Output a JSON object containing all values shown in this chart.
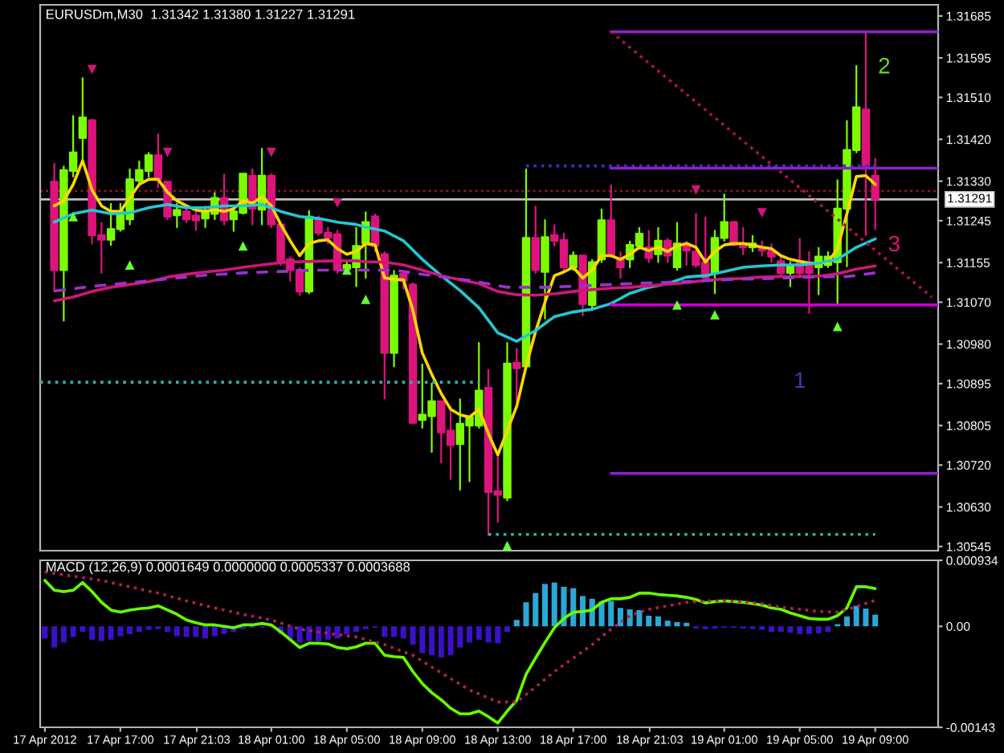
{
  "chart_data": [
    {
      "type": "candlestick",
      "title": "EURUSDm,M30  1.31342 1.31380 1.31227 1.31291",
      "x": [
        "2012-04-17T13:30",
        "2012-04-17T14:00",
        "2012-04-17T14:30",
        "2012-04-17T15:00",
        "2012-04-17T15:30",
        "2012-04-17T16:00",
        "2012-04-17T16:30",
        "2012-04-17T17:00",
        "2012-04-17T17:30",
        "2012-04-17T18:00",
        "2012-04-17T18:30",
        "2012-04-17T19:00",
        "2012-04-17T19:30",
        "2012-04-17T20:00",
        "2012-04-17T20:30",
        "2012-04-17T21:00",
        "2012-04-17T21:30",
        "2012-04-17T22:00",
        "2012-04-17T22:30",
        "2012-04-17T23:00",
        "2012-04-17T23:30",
        "2012-04-18T00:00",
        "2012-04-18T00:30",
        "2012-04-18T01:00",
        "2012-04-18T01:30",
        "2012-04-18T02:00",
        "2012-04-18T02:30",
        "2012-04-18T03:00",
        "2012-04-18T03:30",
        "2012-04-18T04:00",
        "2012-04-18T04:30",
        "2012-04-18T05:00",
        "2012-04-18T05:30",
        "2012-04-18T06:00",
        "2012-04-18T06:30",
        "2012-04-18T07:00",
        "2012-04-18T07:30",
        "2012-04-18T08:00",
        "2012-04-18T08:30",
        "2012-04-18T09:00",
        "2012-04-18T09:30",
        "2012-04-18T10:00",
        "2012-04-18T10:30",
        "2012-04-18T11:00",
        "2012-04-18T11:30",
        "2012-04-18T12:00",
        "2012-04-18T12:30",
        "2012-04-18T13:00",
        "2012-04-18T13:30",
        "2012-04-18T14:00",
        "2012-04-18T14:30",
        "2012-04-18T15:00",
        "2012-04-18T15:30",
        "2012-04-18T16:00",
        "2012-04-18T16:30",
        "2012-04-18T17:00",
        "2012-04-18T17:30",
        "2012-04-18T18:00",
        "2012-04-18T18:30",
        "2012-04-18T19:00",
        "2012-04-18T19:30",
        "2012-04-18T20:00",
        "2012-04-18T20:30",
        "2012-04-18T21:00",
        "2012-04-18T21:30",
        "2012-04-18T22:00",
        "2012-04-18T22:30",
        "2012-04-18T23:00",
        "2012-04-18T23:30",
        "2012-04-19T00:00",
        "2012-04-19T00:30",
        "2012-04-19T01:00",
        "2012-04-19T01:30",
        "2012-04-19T02:00",
        "2012-04-19T02:30",
        "2012-04-19T03:00",
        "2012-04-19T03:30",
        "2012-04-19T04:00",
        "2012-04-19T04:30",
        "2012-04-19T05:00",
        "2012-04-19T05:30",
        "2012-04-19T06:00",
        "2012-04-19T06:30",
        "2012-04-19T07:00",
        "2012-04-19T07:30",
        "2012-04-19T08:00",
        "2012-04-19T08:30",
        "2012-04-19T09:00"
      ],
      "series": [
        {
          "ohlc": [
            [
              1.31329,
              1.31369,
              1.31093,
              1.31139
            ],
            [
              1.31139,
              1.31363,
              1.3103,
              1.31354
            ],
            [
              1.31352,
              1.31472,
              1.3134,
              1.31392
            ],
            [
              1.31423,
              1.31553,
              1.31374,
              1.31467
            ],
            [
              1.31461,
              1.31464,
              1.31196,
              1.31214
            ],
            [
              1.31214,
              1.31242,
              1.31133,
              1.31204
            ],
            [
              1.31204,
              1.31283,
              1.31193,
              1.31227
            ],
            [
              1.31227,
              1.31283,
              1.31223,
              1.31265
            ],
            [
              1.31248,
              1.31357,
              1.31237,
              1.31334
            ],
            [
              1.31331,
              1.31374,
              1.31323,
              1.31354
            ],
            [
              1.31352,
              1.31392,
              1.3134,
              1.31386
            ],
            [
              1.31386,
              1.31432,
              1.31317,
              1.31334
            ],
            [
              1.31329,
              1.31331,
              1.31248,
              1.31254
            ],
            [
              1.31257,
              1.31283,
              1.31231,
              1.31268
            ],
            [
              1.31265,
              1.31277,
              1.31242,
              1.31248
            ],
            [
              1.31256,
              1.31265,
              1.31225,
              1.31246
            ],
            [
              1.3125,
              1.31277,
              1.31231,
              1.31263
            ],
            [
              1.3126,
              1.31306,
              1.31248,
              1.31294
            ],
            [
              1.31294,
              1.31346,
              1.31237,
              1.31246
            ],
            [
              1.31248,
              1.31277,
              1.31223,
              1.31265
            ],
            [
              1.31262,
              1.31348,
              1.3126,
              1.31346
            ],
            [
              1.31342,
              1.31357,
              1.31237,
              1.31271
            ],
            [
              1.31269,
              1.31401,
              1.31237,
              1.31342
            ],
            [
              1.31342,
              1.31346,
              1.31231,
              1.31237
            ],
            [
              1.31237,
              1.31239,
              1.3115,
              1.31156
            ],
            [
              1.31162,
              1.31168,
              1.31116,
              1.31139
            ],
            [
              1.31139,
              1.31145,
              1.31085,
              1.31093
            ],
            [
              1.31093,
              1.31268,
              1.31089,
              1.31254
            ],
            [
              1.31248,
              1.31256,
              1.31214,
              1.31219
            ],
            [
              1.31219,
              1.31231,
              1.31196,
              1.31208
            ],
            [
              1.31216,
              1.31225,
              1.31133,
              1.31139
            ],
            [
              1.31141,
              1.31162,
              1.31133,
              1.3115
            ],
            [
              1.31145,
              1.31231,
              1.31104,
              1.31191
            ],
            [
              1.31196,
              1.31265,
              1.31122,
              1.31242
            ],
            [
              1.31248,
              1.3126,
              1.31179,
              1.31191
            ],
            [
              1.31173,
              1.31179,
              1.30863,
              1.30961
            ],
            [
              1.30961,
              1.31139,
              1.30932,
              1.31127
            ],
            [
              1.31131,
              1.31139,
              1.31099,
              1.31116
            ],
            [
              1.31108,
              1.31112,
              1.30809,
              1.30811
            ],
            [
              1.30817,
              1.30938,
              1.308,
              1.30828
            ],
            [
              1.30825,
              1.30897,
              1.30748,
              1.30857
            ],
            [
              1.30857,
              1.30859,
              1.30725,
              1.3079
            ],
            [
              1.30794,
              1.30846,
              1.3069,
              1.30763
            ],
            [
              1.30765,
              1.30863,
              1.30667,
              1.30809
            ],
            [
              1.30805,
              1.30825,
              1.30685,
              1.30823
            ],
            [
              1.30805,
              1.30984,
              1.308,
              1.3088
            ],
            [
              1.30886,
              1.30926,
              1.3057,
              1.30662
            ],
            [
              1.30664,
              1.30742,
              1.30598,
              1.30656
            ],
            [
              1.3065,
              1.30984,
              1.30644,
              1.30938
            ],
            [
              1.3094,
              1.30972,
              1.30857,
              1.30928
            ],
            [
              1.30932,
              1.31357,
              1.30928,
              1.31208
            ],
            [
              1.31208,
              1.31277,
              1.31133,
              1.31139
            ],
            [
              1.31135,
              1.31248,
              1.31035,
              1.3121
            ],
            [
              1.31214,
              1.31237,
              1.31191,
              1.31202
            ],
            [
              1.31204,
              1.31219,
              1.31139,
              1.31145
            ],
            [
              1.31145,
              1.31179,
              1.31139,
              1.3117
            ],
            [
              1.3117,
              1.31172,
              1.31041,
              1.31066
            ],
            [
              1.31064,
              1.31162,
              1.31053,
              1.31156
            ],
            [
              1.31162,
              1.31271,
              1.31156,
              1.31246
            ],
            [
              1.31246,
              1.31323,
              1.31168,
              1.3117
            ],
            [
              1.31165,
              1.31179,
              1.31122,
              1.31145
            ],
            [
              1.31162,
              1.31202,
              1.31145,
              1.31193
            ],
            [
              1.31191,
              1.31231,
              1.31185,
              1.31217
            ],
            [
              1.31188,
              1.31225,
              1.31156,
              1.31165
            ],
            [
              1.31173,
              1.31231,
              1.31156,
              1.31202
            ],
            [
              1.31202,
              1.31208,
              1.31156,
              1.3117
            ],
            [
              1.31145,
              1.31242,
              1.31139,
              1.31196
            ],
            [
              1.31196,
              1.31202,
              1.3115,
              1.31181
            ],
            [
              1.31179,
              1.31262,
              1.31145,
              1.3115
            ],
            [
              1.31156,
              1.31254,
              1.31116,
              1.31122
            ],
            [
              1.31133,
              1.31225,
              1.31089,
              1.31208
            ],
            [
              1.31208,
              1.31303,
              1.31202,
              1.31242
            ],
            [
              1.31242,
              1.31245,
              1.31191,
              1.31193
            ],
            [
              1.31196,
              1.31231,
              1.31173,
              1.31188
            ],
            [
              1.31188,
              1.31214,
              1.31179,
              1.31196
            ],
            [
              1.31188,
              1.31202,
              1.3117,
              1.31181
            ],
            [
              1.31181,
              1.31196,
              1.31156,
              1.31168
            ],
            [
              1.31158,
              1.31168,
              1.31127,
              1.31133
            ],
            [
              1.31133,
              1.31158,
              1.31104,
              1.3115
            ],
            [
              1.31156,
              1.31208,
              1.31127,
              1.31133
            ],
            [
              1.3115,
              1.31179,
              1.31047,
              1.31133
            ],
            [
              1.31145,
              1.31188,
              1.31087,
              1.31168
            ],
            [
              1.3115,
              1.31179,
              1.31145,
              1.31168
            ],
            [
              1.31156,
              1.31334,
              1.31064,
              1.31271
            ],
            [
              1.31271,
              1.31461,
              1.31147,
              1.31397
            ],
            [
              1.31397,
              1.31579,
              1.31392,
              1.31489
            ],
            [
              1.31484,
              1.31651,
              1.31214,
              1.31363
            ],
            [
              1.31342,
              1.3138,
              1.31227,
              1.31291
            ]
          ],
          "colors": [
            "#dc147c",
            "#7cfc00",
            "#7cfc00",
            "#7cfc00",
            "#dc147c",
            "#dc147c",
            "#7cfc00",
            "#7cfc00",
            "#7cfc00",
            "#7cfc00",
            "#7cfc00",
            "#dc147c",
            "#dc147c",
            "#7cfc00",
            "#dc147c",
            "#dc147c",
            "#7cfc00",
            "#7cfc00",
            "#dc147c",
            "#7cfc00",
            "#7cfc00",
            "#dc147c",
            "#7cfc00",
            "#dc147c",
            "#dc147c",
            "#dc147c",
            "#dc147c",
            "#7cfc00",
            "#dc147c",
            "#dc147c",
            "#dc147c",
            "#7cfc00",
            "#7cfc00",
            "#7cfc00",
            "#dc147c",
            "#dc147c",
            "#7cfc00",
            "#dc147c",
            "#dc147c",
            "#7cfc00",
            "#7cfc00",
            "#dc147c",
            "#dc147c",
            "#7cfc00",
            "#7cfc00",
            "#7cfc00",
            "#dc147c",
            "#dc147c",
            "#7cfc00",
            "#dc147c",
            "#7cfc00",
            "#dc147c",
            "#7cfc00",
            "#dc147c",
            "#dc147c",
            "#7cfc00",
            "#dc147c",
            "#7cfc00",
            "#7cfc00",
            "#dc147c",
            "#dc147c",
            "#7cfc00",
            "#7cfc00",
            "#dc147c",
            "#7cfc00",
            "#dc147c",
            "#7cfc00",
            "#dc147c",
            "#dc147c",
            "#dc147c",
            "#7cfc00",
            "#7cfc00",
            "#dc147c",
            "#dc147c",
            "#7cfc00",
            "#dc147c",
            "#dc147c",
            "#dc147c",
            "#7cfc00",
            "#dc147c",
            "#dc147c",
            "#7cfc00",
            "#7cfc00",
            "#7cfc00",
            "#7cfc00",
            "#7cfc00",
            "#dc147c",
            "#dc147c"
          ]
        },
        {
          "type": "line",
          "color": "#ffd700",
          "values": [
            1.31277,
            1.31288,
            1.31323,
            1.31374,
            1.31311,
            1.31277,
            1.31265,
            1.31265,
            1.31294,
            1.31323,
            1.31334,
            1.31334,
            1.31306,
            1.31288,
            1.31277,
            1.31268,
            1.31265,
            1.31269,
            1.31265,
            1.31271,
            1.31288,
            1.31283,
            1.31296,
            1.31277,
            1.31237,
            1.31202,
            1.3117,
            1.31196,
            1.31202,
            1.31204,
            1.31185,
            1.31173,
            1.31179,
            1.31196,
            1.31193,
            1.31122,
            1.31119,
            1.31118,
            1.31053,
            1.30961,
            1.30915,
            1.30874,
            1.3084,
            1.30828,
            1.30823,
            1.3084,
            1.30788,
            1.30742,
            1.30794,
            1.30846,
            1.30932,
            1.31007,
            1.3107,
            1.31127,
            1.31135,
            1.31145,
            1.31122,
            1.31139,
            1.3117,
            1.3117,
            1.31162,
            1.31173,
            1.31188,
            1.31181,
            1.31188,
            1.31179,
            1.31191,
            1.31196,
            1.31188,
            1.31156,
            1.31179,
            1.31193,
            1.31196,
            1.31196,
            1.31193,
            1.31188,
            1.31185,
            1.3117,
            1.31162,
            1.31158,
            1.31154,
            1.31154,
            1.31156,
            1.31185,
            1.3126,
            1.3134,
            1.31342,
            1.31323
          ]
        },
        {
          "type": "line",
          "color": "#22c8d2",
          "x": [
            "2012-04-17T13:30",
            "2012-04-17T14:30",
            "2012-04-17T15:30",
            "2012-04-17T16:30",
            "2012-04-17T17:30",
            "2012-04-17T18:30",
            "2012-04-17T19:30",
            "2012-04-17T20:30",
            "2012-04-17T21:30",
            "2012-04-17T22:30",
            "2012-04-17T23:30",
            "2012-04-18T00:30",
            "2012-04-18T01:30",
            "2012-04-18T02:30",
            "2012-04-18T03:30",
            "2012-04-18T04:30",
            "2012-04-18T05:30",
            "2012-04-18T06:00",
            "2012-04-18T07:00",
            "2012-04-18T08:00",
            "2012-04-18T09:00",
            "2012-04-18T10:00",
            "2012-04-18T11:00",
            "2012-04-18T12:00",
            "2012-04-18T13:00",
            "2012-04-18T14:00",
            "2012-04-18T15:00",
            "2012-04-18T16:00",
            "2012-04-18T17:00",
            "2012-04-18T18:00",
            "2012-04-18T19:00",
            "2012-04-18T20:00",
            "2012-04-18T21:00",
            "2012-04-18T22:00",
            "2012-04-18T23:00",
            "2012-04-19T00:00",
            "2012-04-19T01:00",
            "2012-04-19T02:00",
            "2012-04-19T03:00",
            "2012-04-19T04:00",
            "2012-04-19T05:00",
            "2012-04-19T06:00",
            "2012-04-19T07:00",
            "2012-04-19T08:00",
            "2012-04-19T09:00"
          ],
          "values": [
            1.31242,
            1.3126,
            1.31268,
            1.3126,
            1.31262,
            1.31273,
            1.3128,
            1.31273,
            1.31273,
            1.31277,
            1.31277,
            1.3128,
            1.31265,
            1.31254,
            1.3125,
            1.31242,
            1.31237,
            1.31231,
            1.31223,
            1.31202,
            1.31162,
            1.31127,
            1.31095,
            1.31058,
            1.31004,
            1.30986,
            1.31009,
            1.31039,
            1.31049,
            1.31055,
            1.31067,
            1.31089,
            1.31102,
            1.3111,
            1.31124,
            1.31127,
            1.31136,
            1.31145,
            1.31148,
            1.3115,
            1.3115,
            1.31154,
            1.31162,
            1.31188,
            1.31206
          ]
        },
        {
          "type": "line",
          "color": "#d0157a",
          "x": [
            "2012-04-17T13:30",
            "2012-04-17T14:30",
            "2012-04-17T15:30",
            "2012-04-17T16:30",
            "2012-04-17T17:30",
            "2012-04-17T18:30",
            "2012-04-17T19:30",
            "2012-04-17T20:30",
            "2012-04-17T21:30",
            "2012-04-17T22:30",
            "2012-04-17T23:30",
            "2012-04-18T00:30",
            "2012-04-18T01:30",
            "2012-04-18T02:30",
            "2012-04-18T03:30",
            "2012-04-18T04:30",
            "2012-04-18T05:30",
            "2012-04-18T06:00",
            "2012-04-18T07:00",
            "2012-04-18T08:00",
            "2012-04-18T09:00",
            "2012-04-18T10:00",
            "2012-04-18T11:00",
            "2012-04-18T12:00",
            "2012-04-18T13:00",
            "2012-04-18T14:00",
            "2012-04-18T15:00",
            "2012-04-18T16:00",
            "2012-04-18T17:00",
            "2012-04-18T18:00",
            "2012-04-18T19:00",
            "2012-04-18T20:00",
            "2012-04-18T21:00",
            "2012-04-18T22:00",
            "2012-04-18T23:00",
            "2012-04-19T00:00",
            "2012-04-19T01:00",
            "2012-04-19T02:00",
            "2012-04-19T03:00",
            "2012-04-19T04:00",
            "2012-04-19T05:00",
            "2012-04-19T06:00",
            "2012-04-19T07:00",
            "2012-04-19T08:00",
            "2012-04-19T09:00"
          ],
          "values": [
            1.31073,
            1.31081,
            1.31093,
            1.31102,
            1.31108,
            1.31114,
            1.31124,
            1.3113,
            1.31135,
            1.31139,
            1.31145,
            1.3115,
            1.31155,
            1.31157,
            1.31158,
            1.31159,
            1.31159,
            1.31157,
            1.31156,
            1.3115,
            1.31139,
            1.31127,
            1.31118,
            1.3111,
            1.31093,
            1.31086,
            1.31085,
            1.31088,
            1.31093,
            1.31097,
            1.311,
            1.31102,
            1.31105,
            1.31109,
            1.31112,
            1.31117,
            1.3112,
            1.31121,
            1.31124,
            1.31125,
            1.31125,
            1.31126,
            1.31131,
            1.31141,
            1.31148
          ]
        },
        {
          "type": "line",
          "color": "#9932cc",
          "line_style": "dashed",
          "x": [
            "2012-04-17T13:30",
            "2012-04-17T15:30",
            "2012-04-17T17:30",
            "2012-04-17T19:30",
            "2012-04-17T21:30",
            "2012-04-17T23:30",
            "2012-04-18T01:30",
            "2012-04-18T03:30",
            "2012-04-18T05:30",
            "2012-04-18T07:30",
            "2012-04-18T09:30",
            "2012-04-18T11:30",
            "2012-04-18T13:30",
            "2012-04-18T15:30",
            "2012-04-18T17:30",
            "2012-04-18T19:30",
            "2012-04-18T21:30",
            "2012-04-18T23:30",
            "2012-04-19T01:30",
            "2012-04-19T03:30",
            "2012-04-19T05:30",
            "2012-04-19T07:30",
            "2012-04-19T09:00"
          ],
          "values": [
            1.31094,
            1.31104,
            1.31112,
            1.3112,
            1.31128,
            1.31133,
            1.31136,
            1.31139,
            1.31139,
            1.31139,
            1.31127,
            1.31117,
            1.31102,
            1.31102,
            1.31105,
            1.31109,
            1.31112,
            1.31115,
            1.31119,
            1.31121,
            1.31124,
            1.31125,
            1.31133
          ]
        },
        {
          "type": "scatter",
          "color": "#d0157a",
          "marker": "triangle_down",
          "x": [
            "2012-04-17T15:30",
            "2012-04-17T19:30",
            "2012-04-18T01:00",
            "2012-04-18T04:30",
            "2012-04-18T06:30",
            "2012-04-18T23:30",
            "2012-04-19T03:00"
          ],
          "values": [
            1.3157,
            1.31392,
            1.31392,
            1.31283,
            1.31246,
            1.31311,
            1.31262
          ]
        },
        {
          "type": "scatter",
          "color": "#66ff33",
          "marker": "triangle",
          "x": [
            "2012-04-17T14:30",
            "2012-04-17T17:30",
            "2012-04-17T23:30",
            "2012-04-18T05:00",
            "2012-04-18T06:00",
            "2012-04-18T13:30",
            "2012-04-18T22:30",
            "2012-04-19T00:30",
            "2012-04-19T07:00"
          ],
          "values": [
            1.31254,
            1.3115,
            1.31191,
            1.31139,
            1.31076,
            1.30547,
            1.31064,
            1.31043,
            1.31018
          ]
        },
        {
          "type": "line",
          "color": "#8b22c8",
          "x": [
            "2012-04-18T19:00",
            "2012-04-19T12:20"
          ],
          "values": [
            1.31651,
            1.31651
          ]
        },
        {
          "type": "line",
          "color": "#b01050",
          "line_style": "dotted",
          "x": [
            "2012-04-18T19:00",
            "2012-04-19T12:00"
          ],
          "values": [
            1.31651,
            1.31081
          ]
        },
        {
          "type": "line",
          "color": "#3030d0",
          "line_style": "dotted",
          "x": [
            "2012-04-18T14:30",
            "2012-04-19T09:00"
          ],
          "values": [
            1.31363,
            1.31363
          ]
        },
        {
          "type": "line",
          "color": "#8b22c8",
          "x": [
            "2012-04-18T19:00",
            "2012-04-19T12:20"
          ],
          "values": [
            1.31358,
            1.31358
          ]
        },
        {
          "type": "line",
          "color": "#cc00cc",
          "x": [
            "2012-04-18T19:00",
            "2012-04-19T12:20"
          ],
          "values": [
            1.31064,
            1.31064
          ]
        },
        {
          "type": "line",
          "color": "#8b22c8",
          "x": [
            "2012-04-18T19:00",
            "2012-04-19T12:20"
          ],
          "values": [
            1.30702,
            1.30702
          ]
        },
        {
          "type": "line",
          "color": "#30b0a0",
          "line_style": "dotted",
          "x": [
            "2012-04-17T12:45",
            "2012-04-18T12:00"
          ],
          "values": [
            1.30898,
            1.30898
          ]
        },
        {
          "type": "line",
          "color": "#30b0a0",
          "line_style": "dotted",
          "x": [
            "2012-04-18T12:30",
            "2012-04-19T09:00"
          ],
          "values": [
            1.30571,
            1.30571
          ]
        }
      ],
      "xlim": [
        "2012-04-17T12:45",
        "2012-04-19T12:20"
      ],
      "ylim": [
        1.30536,
        1.31709
      ],
      "yticks": [
        1.31685,
        1.31595,
        {
          "value": 1.3151,
          "label": "1.31510"
        },
        {
          "value": 1.3142,
          "label": "1.31420"
        },
        {
          "value": 1.3133,
          "label": "1.31330"
        },
        1.31245,
        1.31155,
        {
          "value": 1.3107,
          "label": "1.31070"
        },
        {
          "value": 1.3098,
          "label": "1.30980"
        },
        1.30895,
        1.30805,
        {
          "value": 1.3072,
          "label": "1.30720"
        },
        {
          "value": 1.3063,
          "label": "1.30630"
        },
        1.30545
      ],
      "tick_labels": "y",
      "ref_lines": [
        {
          "axis": "y",
          "value": 1.31309,
          "color": "#a01020",
          "line_style": "dotted"
        },
        {
          "axis": "y",
          "value": 1.31291,
          "label": "1.31291",
          "color": "#c0c0c0"
        }
      ],
      "annotations": [
        "2",
        "3",
        "1"
      ]
    },
    {
      "type": "bar",
      "title": "MACD (12,26,9) 0.0001649 0.0000000 0.0005337 0.0003688",
      "x": [
        "2012-04-17T13:00",
        "2012-04-17T13:30",
        "2012-04-17T14:00",
        "2012-04-17T14:30",
        "2012-04-17T15:00",
        "2012-04-17T15:30",
        "2012-04-17T16:00",
        "2012-04-17T16:30",
        "2012-04-17T17:00",
        "2012-04-17T17:30",
        "2012-04-17T18:00",
        "2012-04-17T18:30",
        "2012-04-17T19:00",
        "2012-04-17T19:30",
        "2012-04-17T20:00",
        "2012-04-17T20:30",
        "2012-04-17T21:00",
        "2012-04-17T21:30",
        "2012-04-17T22:00",
        "2012-04-17T22:30",
        "2012-04-17T23:00",
        "2012-04-17T23:30",
        "2012-04-18T00:00",
        "2012-04-18T00:30",
        "2012-04-18T01:00",
        "2012-04-18T01:30",
        "2012-04-18T02:00",
        "2012-04-18T02:30",
        "2012-04-18T03:00",
        "2012-04-18T03:30",
        "2012-04-18T04:00",
        "2012-04-18T04:30",
        "2012-04-18T05:00",
        "2012-04-18T05:30",
        "2012-04-18T06:00",
        "2012-04-18T06:30",
        "2012-04-18T07:00",
        "2012-04-18T07:30",
        "2012-04-18T08:00",
        "2012-04-18T08:30",
        "2012-04-18T09:00",
        "2012-04-18T09:30",
        "2012-04-18T10:00",
        "2012-04-18T10:30",
        "2012-04-18T11:00",
        "2012-04-18T11:30",
        "2012-04-18T12:00",
        "2012-04-18T12:30",
        "2012-04-18T13:00",
        "2012-04-18T13:30",
        "2012-04-18T14:00",
        "2012-04-18T14:30",
        "2012-04-18T15:00",
        "2012-04-18T15:30",
        "2012-04-18T16:00",
        "2012-04-18T16:30",
        "2012-04-18T17:00",
        "2012-04-18T17:30",
        "2012-04-18T18:00",
        "2012-04-18T18:30",
        "2012-04-18T19:00",
        "2012-04-18T19:30",
        "2012-04-18T20:00",
        "2012-04-18T20:30",
        "2012-04-18T21:00",
        "2012-04-18T21:30",
        "2012-04-18T22:00",
        "2012-04-18T22:30",
        "2012-04-18T23:00",
        "2012-04-18T23:30",
        "2012-04-19T00:00",
        "2012-04-19T00:30",
        "2012-04-19T01:00",
        "2012-04-19T01:30",
        "2012-04-19T02:00",
        "2012-04-19T02:30",
        "2012-04-19T03:00",
        "2012-04-19T03:30",
        "2012-04-19T04:00",
        "2012-04-19T04:30",
        "2012-04-19T05:00",
        "2012-04-19T05:30",
        "2012-04-19T06:00",
        "2012-04-19T06:30",
        "2012-04-19T07:00",
        "2012-04-19T07:30",
        "2012-04-19T08:00",
        "2012-04-19T08:30",
        "2012-04-19T09:00"
      ],
      "series": [
        {
          "color": "#2aa8d8",
          "values": [
            null,
            null,
            null,
            null,
            null,
            null,
            null,
            null,
            null,
            null,
            null,
            null,
            null,
            null,
            null,
            null,
            null,
            null,
            null,
            null,
            null,
            null,
            null,
            null,
            null,
            null,
            null,
            null,
            null,
            null,
            null,
            null,
            null,
            null,
            null,
            null,
            null,
            null,
            null,
            null,
            null,
            null,
            null,
            null,
            null,
            null,
            null,
            null,
            null,
            null,
            9e-05,
            0.00034,
            0.00047,
            0.0006,
            0.00062,
            0.00056,
            0.00054,
            0.00043,
            0.00039,
            0.00035,
            0.00036,
            0.00026,
            0.00024,
            0.00023,
            0.00015,
            0.00014,
            8e-05,
            6e-05,
            5e-05,
            null,
            null,
            null,
            null,
            null,
            null,
            null,
            null,
            null,
            null,
            null,
            null,
            null,
            null,
            null,
            3e-05,
            0.00014,
            0.00029,
            0.00025,
            0.0001649
          ]
        },
        {
          "color": "#3c10c8",
          "values": [
            -0.00017,
            -0.0003,
            -0.00023,
            -0.00015,
            -8e-05,
            -0.00019,
            -0.00021,
            -0.00019,
            -0.00014,
            -0.00011,
            -8e-05,
            -5e-05,
            -4e-05,
            -8e-05,
            -0.00014,
            -0.00015,
            -0.00015,
            -0.00017,
            -0.00014,
            -0.00011,
            -8e-05,
            -4e-05,
            -2e-05,
            -2e-05,
            -2e-05,
            -0.00011,
            -0.00019,
            -0.00023,
            -0.00021,
            -0.00021,
            -0.00019,
            -0.00017,
            -0.00011,
            -8e-05,
            -4e-05,
            -2e-05,
            -0.00015,
            -0.00015,
            -0.00017,
            -0.00026,
            -0.00038,
            -0.00041,
            -0.00044,
            -0.00041,
            -0.0003,
            -0.00023,
            -0.00019,
            -0.00023,
            -0.00024,
            -8e-05,
            null,
            null,
            null,
            null,
            null,
            null,
            null,
            null,
            null,
            null,
            null,
            null,
            null,
            null,
            null,
            null,
            null,
            null,
            null,
            -3e-05,
            -4e-05,
            -3e-05,
            -2e-05,
            -2e-05,
            -3e-05,
            -4e-05,
            -5e-05,
            -8e-05,
            -8e-05,
            -9e-05,
            -0.00011,
            -0.00011,
            -0.0001,
            -8e-05,
            null,
            null,
            null,
            null,
            null
          ]
        },
        {
          "type": "line",
          "color": "#66ff00",
          "values": [
            0.00065,
            0.00051,
            0.00049,
            0.00051,
            0.00062,
            0.00049,
            0.00034,
            0.00023,
            0.0002,
            0.00023,
            0.00025,
            0.00026,
            0.00029,
            0.00023,
            0.00017,
            9e-05,
            5e-05,
            2e-05,
            2e-05,
            0,
            -2e-05,
            2e-05,
            2e-05,
            4e-05,
            2e-05,
            -8e-05,
            -0.00019,
            -0.0003,
            -0.00024,
            -0.00024,
            -0.00025,
            -0.0003,
            -0.00032,
            -0.00029,
            -0.00024,
            -0.00024,
            -0.00041,
            -0.00043,
            -0.00044,
            -0.00064,
            -0.00081,
            -0.00094,
            -0.00104,
            -0.00116,
            -0.00124,
            -0.00124,
            -0.0012,
            -0.00128,
            -0.00137,
            -0.0012,
            -0.00105,
            -0.00068,
            -0.00045,
            -0.00023,
            -2e-05,
            0.00011,
            0.0002,
            0.00021,
            0.00023,
            0.00034,
            0.00039,
            0.00039,
            0.00041,
            0.00047,
            0.00047,
            0.00045,
            0.00044,
            0.00043,
            0.00041,
            0.00038,
            0.00033,
            0.00035,
            0.00036,
            0.00035,
            0.00034,
            0.00032,
            0.0003,
            0.00026,
            0.00024,
            0.00019,
            0.00015,
            0.00011,
            0.0001,
            0.0001,
            0.00015,
            0.00026,
            0.00056,
            0.00056,
            0.0005337
          ]
        },
        {
          "type": "line",
          "color": "#b0204a",
          "line_style": "dotted",
          "x": [
            "2012-04-17T13:00",
            "2012-04-17T14:30",
            "2012-04-17T16:00",
            "2012-04-17T17:30",
            "2012-04-17T19:00",
            "2012-04-17T20:30",
            "2012-04-17T22:00",
            "2012-04-17T23:30",
            "2012-04-18T01:00",
            "2012-04-18T02:30",
            "2012-04-18T04:00",
            "2012-04-18T05:30",
            "2012-04-18T07:00",
            "2012-04-18T08:30",
            "2012-04-18T10:00",
            "2012-04-18T11:30",
            "2012-04-18T13:00",
            "2012-04-18T14:00",
            "2012-04-18T15:00",
            "2012-04-18T16:00",
            "2012-04-18T17:00",
            "2012-04-18T18:00",
            "2012-04-18T19:00",
            "2012-04-18T20:00",
            "2012-04-18T21:00",
            "2012-04-18T22:00",
            "2012-04-18T23:00",
            "2012-04-19T00:00",
            "2012-04-19T01:00",
            "2012-04-19T02:00",
            "2012-04-19T03:00",
            "2012-04-19T04:00",
            "2012-04-19T05:00",
            "2012-04-19T06:00",
            "2012-04-19T07:00",
            "2012-04-19T08:00",
            "2012-04-19T09:00"
          ],
          "values": [
            0.00077,
            0.00071,
            0.00065,
            0.00056,
            0.00047,
            0.00036,
            0.00026,
            0.00017,
            9e-05,
            -4e-05,
            -0.0001,
            -0.00015,
            -0.00026,
            -0.00041,
            -0.00066,
            -0.0009,
            -0.00107,
            -0.00107,
            -0.00086,
            -0.00064,
            -0.00045,
            -0.00026,
            -4e-05,
            0.00015,
            0.00024,
            0.00029,
            0.00034,
            0.00036,
            0.00036,
            0.00035,
            0.00032,
            0.00027,
            0.00024,
            0.00021,
            0.0002,
            0.00028,
            0.0003688
          ]
        }
      ],
      "xlim": [
        "2012-04-17T12:45",
        "2012-04-19T12:20"
      ],
      "ylim": [
        -0.00143,
        0.000934
      ],
      "yticks": [
        0.000934,
        {
          "value": 0,
          "label": "0.00"
        },
        -0.00143
      ],
      "xticks": [
        {
          "value": "2012-04-17T13:00",
          "label": "17 Apr 2012"
        },
        {
          "value": "2012-04-17T17:00",
          "label": "17 Apr 17:00"
        },
        {
          "value": "2012-04-17T21:03",
          "label": "17 Apr 21:03"
        },
        {
          "value": "2012-04-18T01:00",
          "label": "18 Apr 01:00"
        },
        {
          "value": "2012-04-18T05:00",
          "label": "18 Apr 05:00"
        },
        {
          "value": "2012-04-18T09:00",
          "label": "18 Apr 09:00"
        },
        {
          "value": "2012-04-18T13:00",
          "label": "18 Apr 13:00"
        },
        {
          "value": "2012-04-18T17:00",
          "label": "18 Apr 17:00"
        },
        {
          "value": "2012-04-18T21:03",
          "label": "18 Apr 21:03"
        },
        {
          "value": "2012-04-19T01:00",
          "label": "19 Apr 01:00"
        },
        {
          "value": "2012-04-19T05:00",
          "label": "19 Apr 05:00"
        },
        {
          "value": "2012-04-19T09:00",
          "label": "19 Apr 09:00"
        }
      ]
    }
  ]
}
